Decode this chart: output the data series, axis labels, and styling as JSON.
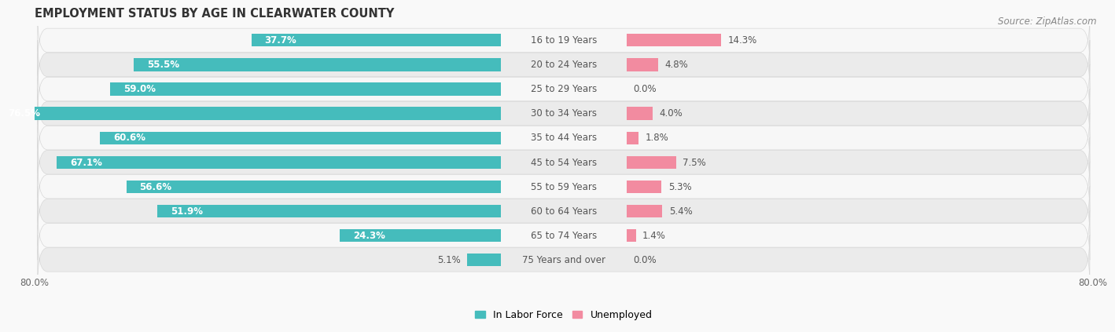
{
  "title": "EMPLOYMENT STATUS BY AGE IN CLEARWATER COUNTY",
  "source": "Source: ZipAtlas.com",
  "categories": [
    "16 to 19 Years",
    "20 to 24 Years",
    "25 to 29 Years",
    "30 to 34 Years",
    "35 to 44 Years",
    "45 to 54 Years",
    "55 to 59 Years",
    "60 to 64 Years",
    "65 to 74 Years",
    "75 Years and over"
  ],
  "labor_force": [
    37.7,
    55.5,
    59.0,
    76.5,
    60.6,
    67.1,
    56.6,
    51.9,
    24.3,
    5.1
  ],
  "unemployed": [
    14.3,
    4.8,
    0.0,
    4.0,
    1.8,
    7.5,
    5.3,
    5.4,
    1.4,
    0.0
  ],
  "labor_force_color": "#45BCBC",
  "unemployed_color": "#F28BA0",
  "bar_height": 0.52,
  "x_min": -80.0,
  "x_max": 80.0,
  "title_fontsize": 10.5,
  "cat_label_fontsize": 8.5,
  "value_label_fontsize": 8.5,
  "axis_label_fontsize": 8.5,
  "legend_fontsize": 9,
  "source_fontsize": 8.5,
  "row_colors": [
    "#f7f7f7",
    "#ebebeb"
  ],
  "fig_bg": "#f9f9f9"
}
